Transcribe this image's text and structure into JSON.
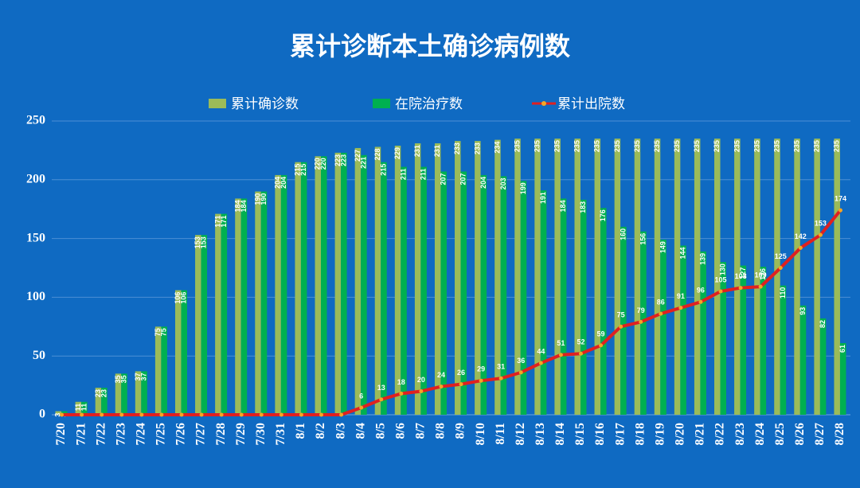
{
  "chart_data": {
    "type": "bar-line",
    "title": "累计诊断本土确诊病例数",
    "categories": [
      "7/20",
      "7/21",
      "7/22",
      "7/23",
      "7/24",
      "7/25",
      "7/26",
      "7/27",
      "7/28",
      "7/29",
      "7/30",
      "7/31",
      "8/1",
      "8/2",
      "8/3",
      "8/4",
      "8/5",
      "8/6",
      "8/7",
      "8/8",
      "8/9",
      "8/10",
      "8/11",
      "8/12",
      "8/13",
      "8/14",
      "8/15",
      "8/16",
      "8/17",
      "8/18",
      "8/19",
      "8/20",
      "8/21",
      "8/22",
      "8/23",
      "8/24",
      "8/25",
      "8/26",
      "8/27",
      "8/28"
    ],
    "series": [
      {
        "name": "累计确诊数",
        "type": "bar",
        "color": "#9bbb59",
        "values": [
          3,
          11,
          23,
          35,
          37,
          75,
          106,
          153,
          171,
          184,
          190,
          204,
          215,
          220,
          223,
          227,
          228,
          229,
          231,
          231,
          233,
          233,
          234,
          235,
          235,
          235,
          235,
          235,
          235,
          235,
          235,
          235,
          235,
          235,
          235,
          235,
          235,
          235,
          235,
          235
        ]
      },
      {
        "name": "在院治疗数",
        "type": "bar",
        "color": "#00b050",
        "values": [
          3,
          11,
          23,
          35,
          37,
          75,
          106,
          153,
          171,
          184,
          190,
          204,
          215,
          220,
          223,
          221,
          215,
          211,
          211,
          207,
          207,
          204,
          203,
          199,
          191,
          184,
          183,
          176,
          160,
          156,
          149,
          144,
          139,
          130,
          127,
          126,
          110,
          93,
          82,
          61
        ]
      },
      {
        "name": "累计出院数",
        "type": "line",
        "color": "#e02020",
        "marker_color": "#f5a623",
        "values": [
          0,
          0,
          0,
          0,
          0,
          0,
          0,
          0,
          0,
          0,
          0,
          0,
          0,
          0,
          0,
          6,
          13,
          18,
          20,
          24,
          26,
          29,
          31,
          36,
          44,
          51,
          52,
          59,
          75,
          79,
          86,
          91,
          96,
          105,
          108,
          109,
          125,
          142,
          153,
          174
        ]
      }
    ],
    "ylim": [
      0,
      250
    ],
    "yticks": [
      0,
      50,
      100,
      150,
      200,
      250
    ],
    "grid": true,
    "legend": "top"
  }
}
